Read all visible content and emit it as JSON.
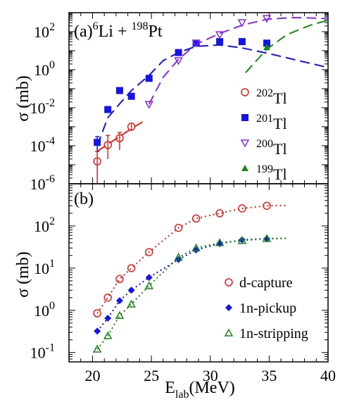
{
  "chart_data": [
    {
      "panel": "(a)",
      "type": "scatter",
      "title_parts": [
        "(a)",
        "6",
        "Li + ",
        "198",
        "Pt"
      ],
      "xlabel": "E_lab(MeV)",
      "ylabel": "σ (mb)",
      "xlim": [
        18,
        40
      ],
      "ylim": [
        1e-06,
        1000
      ],
      "yscale": "log",
      "x_ticks": [
        "20",
        "25",
        "30",
        "35",
        "40"
      ],
      "y_ticks": [
        {
          "base": "10",
          "exp": "-6"
        },
        {
          "base": "10",
          "exp": "-4"
        },
        {
          "base": "10",
          "exp": "-2"
        },
        {
          "base": "10",
          "exp": "0"
        },
        {
          "base": "10",
          "exp": "2"
        }
      ],
      "legend_position": "right",
      "series": [
        {
          "name": "202Tl",
          "mass": "202",
          "element": "Tl",
          "marker": "open-circle",
          "color": "#e8221c",
          "points": [
            {
              "x": 20.4,
              "y": 1.5e-05,
              "ylo": 1e-06,
              "yhi": 5e-05
            },
            {
              "x": 21.3,
              "y": 0.00011,
              "ylo": 2e-05,
              "yhi": 0.00035
            },
            {
              "x": 22.3,
              "y": 0.00025,
              "ylo": 6e-05,
              "yhi": 0.0005
            },
            {
              "x": 23.3,
              "y": 0.001,
              "ylo": 0.0006,
              "yhi": 0.0015
            }
          ]
        },
        {
          "name": "201Tl",
          "mass": "201",
          "element": "Tl",
          "marker": "filled-square",
          "color": "#1414e6",
          "points": [
            {
              "x": 20.4,
              "y": 0.00015,
              "ylo": 5e-05,
              "yhi": 0.0003
            },
            {
              "x": 21.3,
              "y": 0.008
            },
            {
              "x": 22.3,
              "y": 0.08
            },
            {
              "x": 23.3,
              "y": 0.04
            },
            {
              "x": 24.8,
              "y": 0.35
            },
            {
              "x": 27.3,
              "y": 8.0
            },
            {
              "x": 28.8,
              "y": 25
            },
            {
              "x": 30.8,
              "y": 30
            },
            {
              "x": 32.7,
              "y": 30
            },
            {
              "x": 34.8,
              "y": 25
            }
          ]
        },
        {
          "name": "200Tl",
          "mass": "200",
          "element": "Tl",
          "marker": "open-triangle-down",
          "color": "#8a2be2",
          "points": [
            {
              "x": 24.8,
              "y": 0.015
            },
            {
              "x": 27.3,
              "y": 3.0
            },
            {
              "x": 28.8,
              "y": 25
            },
            {
              "x": 30.8,
              "y": 70
            },
            {
              "x": 32.7,
              "y": 300
            },
            {
              "x": 34.8,
              "y": 500
            }
          ]
        },
        {
          "name": "199Tl",
          "mass": "199",
          "element": "Tl",
          "marker": "filled-triangle-up",
          "color": "#168a16",
          "points": [
            {
              "x": 34.8,
              "y": 15
            }
          ]
        }
      ],
      "curves": [
        {
          "series": "202Tl",
          "color": "#e8221c",
          "points": [
            [
              20.4,
              5e-05
            ],
            [
              21.3,
              0.00012
            ],
            [
              22.3,
              0.0003
            ],
            [
              23.3,
              0.0008
            ],
            [
              24.5,
              0.0022
            ]
          ]
        },
        {
          "series": "201Tl",
          "color": "#1414e6",
          "points": [
            [
              20.4,
              0.0001
            ],
            [
              21.3,
              0.003
            ],
            [
              22.3,
              0.016
            ],
            [
              23.3,
              0.08
            ],
            [
              24.8,
              0.5
            ],
            [
              26.0,
              3
            ],
            [
              27.3,
              8
            ],
            [
              28.8,
              17
            ],
            [
              30.8,
              20
            ],
            [
              32.7,
              14
            ],
            [
              35,
              7
            ],
            [
              37.5,
              3
            ],
            [
              40,
              1.3
            ]
          ]
        },
        {
          "series": "200Tl",
          "color": "#8a2be2",
          "points": [
            [
              24.8,
              0.015
            ],
            [
              26.0,
              0.4
            ],
            [
              27.3,
              3.5
            ],
            [
              28.8,
              22
            ],
            [
              30.8,
              80
            ],
            [
              32.7,
              220
            ],
            [
              34.8,
              450
            ],
            [
              37,
              550
            ],
            [
              39,
              520
            ],
            [
              40,
              480
            ]
          ]
        },
        {
          "series": "199Tl",
          "color": "#168a16",
          "points": [
            [
              33.0,
              0.7
            ],
            [
              34.8,
              12
            ],
            [
              36.5,
              70
            ],
            [
              38.5,
              220
            ],
            [
              40,
              400
            ]
          ]
        }
      ]
    },
    {
      "panel": "(b)",
      "type": "scatter",
      "title": "(b)",
      "xlabel": "E_lab(MeV)",
      "ylabel": "σ (mb)",
      "xlim": [
        18,
        40
      ],
      "ylim": [
        0.06,
        1000
      ],
      "yscale": "log",
      "x_ticks": [
        "20",
        "25",
        "30",
        "35",
        "40"
      ],
      "y_ticks": [
        {
          "base": "10",
          "exp": "-1"
        },
        {
          "base": "10",
          "exp": "0"
        },
        {
          "base": "10",
          "exp": "1"
        },
        {
          "base": "10",
          "exp": "2"
        }
      ],
      "top_tick_label": {
        "base": "10",
        "exp": "-6"
      },
      "legend_position": "bottom-right",
      "series": [
        {
          "name": "d-capture",
          "marker": "open-circle",
          "color": "#e8221c",
          "x": [
            20.4,
            21.3,
            22.3,
            23.3,
            24.8,
            27.3,
            28.8,
            30.8,
            32.7,
            34.8
          ],
          "y": [
            0.85,
            2.0,
            5.5,
            10,
            24,
            90,
            150,
            200,
            260,
            300
          ]
        },
        {
          "name": "1n-pickup",
          "marker": "filled-diamond",
          "color": "#1414e6",
          "x": [
            20.4,
            21.3,
            22.3,
            23.3,
            24.8,
            27.3,
            28.8,
            30.8,
            32.7,
            34.8
          ],
          "y": [
            0.32,
            0.65,
            1.7,
            3.0,
            6.0,
            16,
            27,
            38,
            47,
            50
          ]
        },
        {
          "name": "1n-stripping",
          "marker": "open-triangle-up",
          "color": "#168a16",
          "x": [
            20.4,
            21.3,
            22.3,
            23.3,
            24.8,
            27.3,
            28.8,
            30.8,
            32.7,
            34.8
          ],
          "y": [
            0.12,
            0.25,
            0.75,
            1.4,
            3.8,
            18,
            30,
            40,
            45,
            50
          ]
        }
      ]
    }
  ]
}
